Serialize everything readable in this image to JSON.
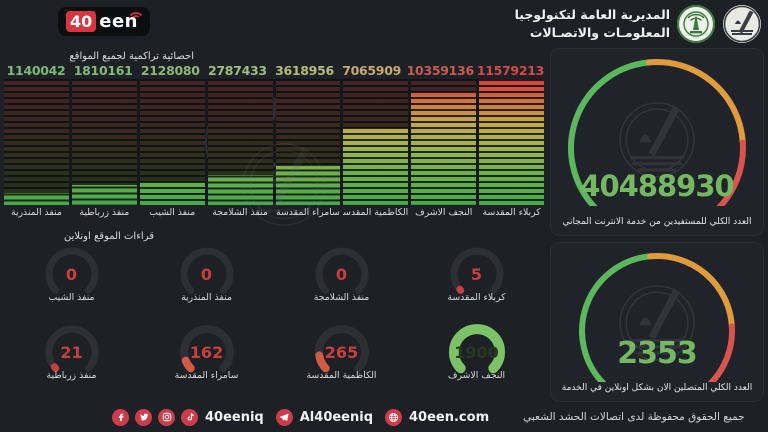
{
  "header": {
    "title_line1": "المديرية العامة لتكنولوجيا",
    "title_line2": "المعلومـات والاتصـالات",
    "logo": {
      "num": "40",
      "rest": "een"
    }
  },
  "chart": {
    "title": "احصائية تراكمية لجميع المواقع",
    "max": 11579213,
    "bars": [
      {
        "label": "منفذ المنذرية",
        "value": 1140042,
        "color": "#7db878"
      },
      {
        "label": "منفذ زرباطية",
        "value": 1810161,
        "color": "#84ba77"
      },
      {
        "label": "منفذ الشيب",
        "value": 2128080,
        "color": "#8cba76"
      },
      {
        "label": "منفذ الشلامجة",
        "value": 2787433,
        "color": "#9fbe7b"
      },
      {
        "label": "سامراء المقدسة",
        "value": 3618956,
        "color": "#b5bc79"
      },
      {
        "label": "الكاظمية المقدسة",
        "value": 7065909,
        "color": "#c9a873"
      },
      {
        "label": "النجف الاشرف",
        "value": 10359136,
        "color": "#c85b51"
      },
      {
        "label": "كربلاء المقدسة",
        "value": 11579213,
        "color": "#d14b48"
      }
    ]
  },
  "small_gauges": {
    "title": "قراءات الموقع اونلاين",
    "row1": [
      {
        "label": "منفذ الشيب",
        "value": "0",
        "frac": 0,
        "color": "#c5403f",
        "value_color": "#c5403f",
        "track": "#2c2f35",
        "width": 7
      },
      {
        "label": "منفذ المنذرية",
        "value": "0",
        "frac": 0,
        "color": "#c5403f",
        "value_color": "#c5403f",
        "track": "#2c2f35",
        "width": 7
      },
      {
        "label": "منفذ الشلامجة",
        "value": "0",
        "frac": 0,
        "color": "#c5403f",
        "value_color": "#c5403f",
        "track": "#2c2f35",
        "width": 7
      },
      {
        "label": "كربلاء المقدسة",
        "value": "5",
        "frac": 0.012,
        "color": "#c5403f",
        "value_color": "#c5403f",
        "track": "#2c2f35",
        "width": 7
      }
    ],
    "row2": [
      {
        "label": "منفذ زرباطية",
        "value": "21",
        "frac": 0.02,
        "color": "#c5403f",
        "value_color": "#c5403f",
        "track": "#2c2f35",
        "width": 7
      },
      {
        "label": "سامراء المقدسة",
        "value": "162",
        "frac": 0.085,
        "color": "#d05a42",
        "value_color": "#c5403f",
        "track": "#2c2f35",
        "width": 8
      },
      {
        "label": "الكاظمية المقدسة",
        "value": "265",
        "frac": 0.135,
        "color": "#d05a42",
        "value_color": "#c5403f",
        "track": "#2c2f35",
        "width": 8
      },
      {
        "label": "النجف الاشرف",
        "value": "1900",
        "frac": 1,
        "color": "#7cc368",
        "value_color": "#26391f",
        "track": "#7cc368",
        "width": 10
      }
    ]
  },
  "big_gauges": [
    {
      "value": "40488930",
      "label": "العدد الكلي للمستفيدين من خدمة الانترنت المجاني",
      "value_color": "#74b862"
    },
    {
      "value": "2353",
      "label": "العدد الكلي المتصلين الان بشكل اونلاين في الخدمة",
      "value_color": "#74b862"
    }
  ],
  "gauge_segments": [
    {
      "color": "#5cb85c",
      "f0": 0,
      "f1": 0.48
    },
    {
      "color": "#e09b3d",
      "f0": 0.48,
      "f1": 0.82
    },
    {
      "color": "#d9534f",
      "f0": 0.82,
      "f1": 1
    }
  ],
  "footer": {
    "social_handle": "40eeniq",
    "telegram_handle": "Al40eeniq",
    "website": "40een.com",
    "rights": "جميع الحقوق محفوظة لدى اتصالات الحشد الشعبي"
  },
  "colors": {
    "accent_red": "#ce3c4c",
    "green": "#74b862",
    "value_red": "#c5403f",
    "background": "#1d2126"
  },
  "chart_data": [
    {
      "type": "bar",
      "title": "احصائية تراكمية لجميع المواقع",
      "categories": [
        "منفذ المنذرية",
        "منفذ زرباطية",
        "منفذ الشيب",
        "منفذ الشلامجة",
        "سامراء المقدسة",
        "الكاظمية المقدسة",
        "النجف الاشرف",
        "كربلاء المقدسة"
      ],
      "values": [
        1140042,
        1810161,
        2128080,
        2787433,
        3618956,
        7065909,
        10359136,
        11579213
      ],
      "ylim": [
        0,
        11579213
      ],
      "style": "led-equalizer bars, green-to-red vertical gradient, data labels on top",
      "legend": false,
      "grid": false
    },
    {
      "type": "gauge",
      "title": "قراءات الموقع اونلاين",
      "items": [
        {
          "label": "منفذ الشيب",
          "value": 0
        },
        {
          "label": "منفذ المنذرية",
          "value": 0
        },
        {
          "label": "منفذ الشلامجة",
          "value": 0
        },
        {
          "label": "كربلاء المقدسة",
          "value": 5
        },
        {
          "label": "منفذ زرباطية",
          "value": 21
        },
        {
          "label": "سامراء المقدسة",
          "value": 162
        },
        {
          "label": "الكاظمية المقدسة",
          "value": 265
        },
        {
          "label": "النجف الاشرف",
          "value": 1900
        }
      ]
    },
    {
      "type": "gauge",
      "value": 40488930,
      "label": "العدد الكلي للمستفيدين من خدمة الانترنت المجاني"
    },
    {
      "type": "gauge",
      "value": 2353,
      "label": "العدد الكلي المتصلين الان بشكل اونلاين في الخدمة"
    }
  ]
}
